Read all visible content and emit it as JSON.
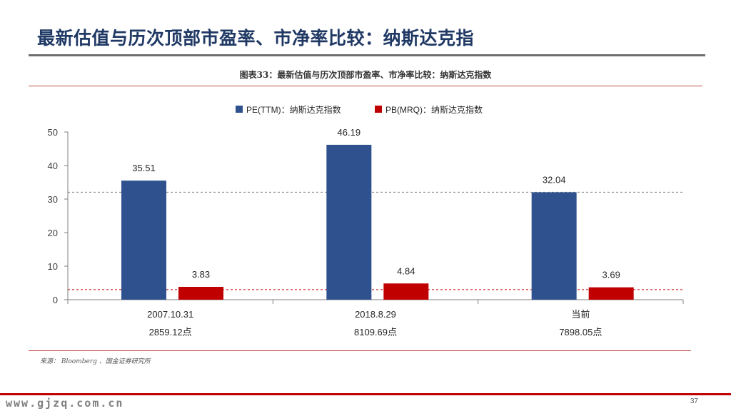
{
  "slide": {
    "title": "最新估值与历次顶部市盈率、市净率比较：纳斯达克指",
    "page_number": "37",
    "website": "www.gjzq.com.cn",
    "source": "来源： Bloomberg 、国金证券研究所"
  },
  "chart_data": {
    "type": "bar",
    "title": "图表33：最新估值与历次顶部市盈率、市净率比较：纳斯达克指数",
    "categories": [
      "2007.10.31",
      "2018.8.29",
      "当前"
    ],
    "category_sublabels": [
      "2859.12点",
      "8109.69点",
      "7898.05点"
    ],
    "series": [
      {
        "name": "PE(TTM)：纳斯达克指数",
        "values": [
          35.51,
          46.19,
          32.04
        ],
        "color": "#2f528f"
      },
      {
        "name": "PB(MRQ)：纳斯达克指数",
        "values": [
          3.83,
          4.84,
          3.69
        ],
        "color": "#c00000"
      }
    ],
    "ylim": [
      0,
      50
    ],
    "yticks": [
      0,
      10,
      20,
      30,
      40,
      50
    ],
    "reference_lines": [
      {
        "value": 32.04,
        "style": "dashed",
        "color": "#7f7f7f"
      },
      {
        "value": 3.0,
        "style": "dashed",
        "color": "#c00000"
      }
    ],
    "legend_position": "top",
    "grid": false
  },
  "colors": {
    "title": "#1f3864",
    "accent_red": "#c00000",
    "rule_red": "#c0504d",
    "pe_bar": "#2f528f",
    "pb_bar": "#c00000"
  }
}
